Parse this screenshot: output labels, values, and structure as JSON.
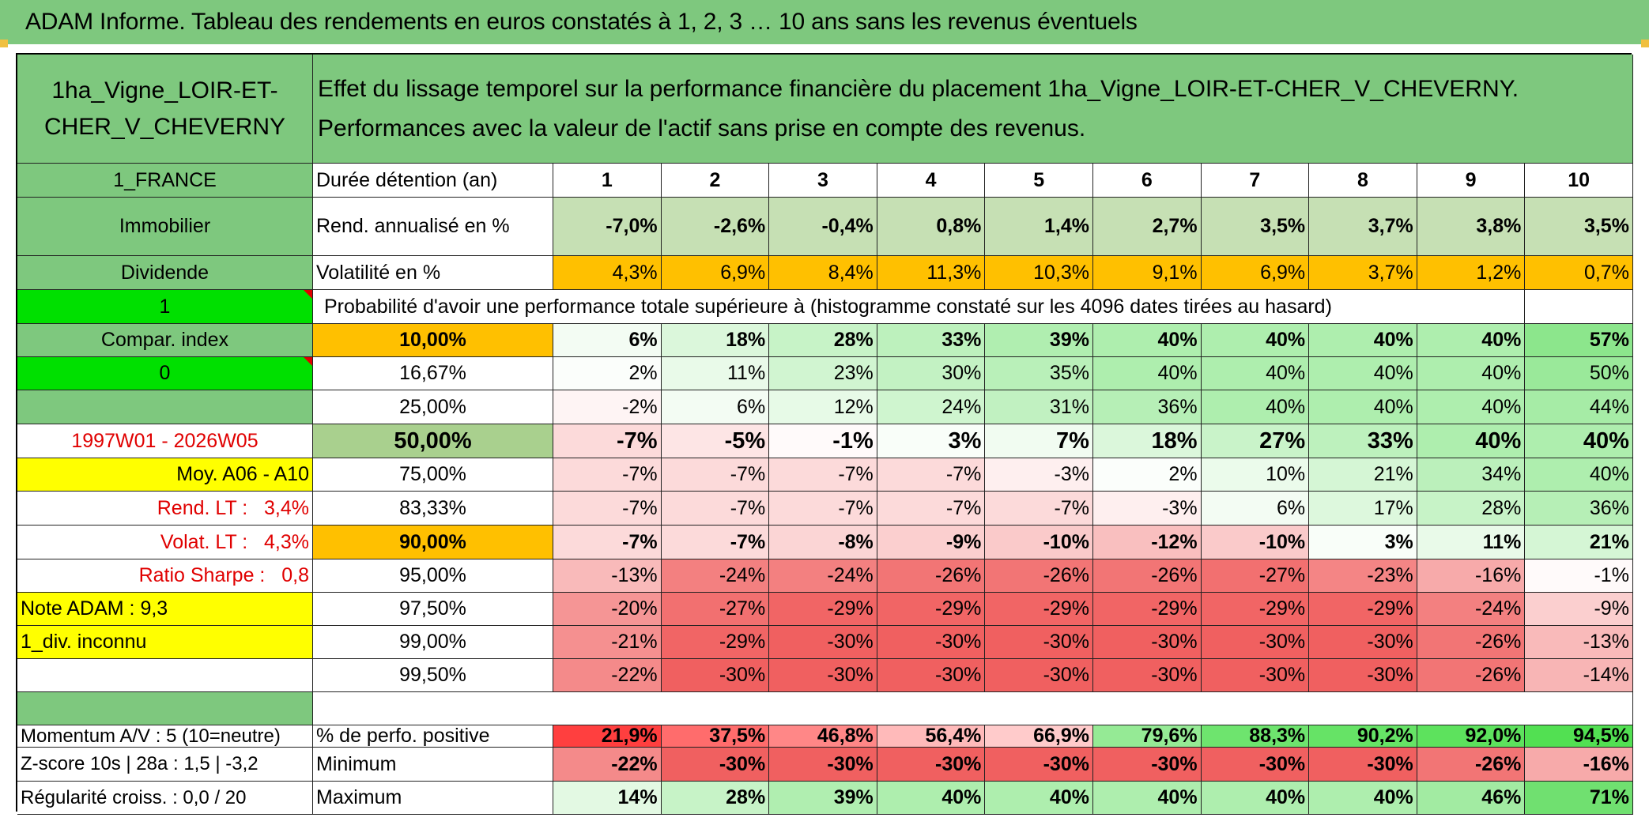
{
  "title": "ADAM Informe. Tableau des rendements en euros constatés à 1, 2, 3 … 10 ans sans les revenus éventuels",
  "asset_name": "1ha_Vigne_LOIR-ET-CHER_V_CHEVERNY",
  "description": "Effet du lissage temporel sur la performance financière du placement 1ha_Vigne_LOIR-ET-CHER_V_CHEVERNY. Performances avec la valeur de l'actif sans prise en compte des revenus.",
  "left": {
    "country": "1_FRANCE",
    "category": "Immobilier",
    "type": "Dividende",
    "flag1": "1",
    "compar_index": "Compar. index",
    "flag0": "0",
    "period": "1997W01 - 2026W05",
    "moy": "Moy. A06 - A10",
    "rend_lt_label": "Rend. LT :",
    "rend_lt_value": "3,4%",
    "volat_lt_label": "Volat. LT :",
    "volat_lt_value": "4,3%",
    "sharpe_label": "Ratio Sharpe :",
    "sharpe_value": "0,8",
    "note": "Note ADAM : 9,3",
    "div": "1_div. inconnu",
    "momentum": "Momentum A/V : 5 (10=neutre)",
    "zscore": "Z-score 10s | 28a : 1,5 | -3,2",
    "regularite": "Régularité croiss. : 0,0 / 20"
  },
  "labels": {
    "duree": "Durée détention (an)",
    "rend": "Rend. annualisé en %",
    "volat": "Volatilité en %",
    "proba": "Probabilité d'avoir une performance totale supérieure à (histogramme constaté sur les 4096 dates tirées au hasard)",
    "perfo_pos": "% de perfo. positive",
    "minimum": "Minimum",
    "maximum": "Maximum"
  },
  "years": [
    "1",
    "2",
    "3",
    "4",
    "5",
    "6",
    "7",
    "8",
    "9",
    "10"
  ],
  "rend": [
    "-7,0%",
    "-2,6%",
    "-0,4%",
    "0,8%",
    "1,4%",
    "2,7%",
    "3,5%",
    "3,7%",
    "3,8%",
    "3,5%"
  ],
  "volat": [
    "4,3%",
    "6,9%",
    "8,4%",
    "11,3%",
    "10,3%",
    "9,1%",
    "6,9%",
    "3,7%",
    "1,2%",
    "0,7%"
  ],
  "prob_rows": [
    {
      "pct": "10,00%",
      "values": [
        "6%",
        "18%",
        "28%",
        "33%",
        "39%",
        "40%",
        "40%",
        "40%",
        "40%",
        "57%"
      ]
    },
    {
      "pct": "16,67%",
      "values": [
        "2%",
        "11%",
        "23%",
        "30%",
        "35%",
        "40%",
        "40%",
        "40%",
        "40%",
        "50%"
      ]
    },
    {
      "pct": "25,00%",
      "values": [
        "-2%",
        "6%",
        "12%",
        "24%",
        "31%",
        "36%",
        "40%",
        "40%",
        "40%",
        "44%"
      ]
    },
    {
      "pct": "50,00%",
      "values": [
        "-7%",
        "-5%",
        "-1%",
        "3%",
        "7%",
        "18%",
        "27%",
        "33%",
        "40%",
        "40%"
      ]
    },
    {
      "pct": "75,00%",
      "values": [
        "-7%",
        "-7%",
        "-7%",
        "-7%",
        "-3%",
        "2%",
        "10%",
        "21%",
        "34%",
        "40%"
      ]
    },
    {
      "pct": "83,33%",
      "values": [
        "-7%",
        "-7%",
        "-7%",
        "-7%",
        "-7%",
        "-3%",
        "6%",
        "17%",
        "28%",
        "36%"
      ]
    },
    {
      "pct": "90,00%",
      "values": [
        "-7%",
        "-7%",
        "-8%",
        "-9%",
        "-10%",
        "-12%",
        "-10%",
        "3%",
        "11%",
        "21%"
      ]
    },
    {
      "pct": "95,00%",
      "values": [
        "-13%",
        "-24%",
        "-24%",
        "-26%",
        "-26%",
        "-26%",
        "-27%",
        "-23%",
        "-16%",
        "-1%"
      ]
    },
    {
      "pct": "97,50%",
      "values": [
        "-20%",
        "-27%",
        "-29%",
        "-29%",
        "-29%",
        "-29%",
        "-29%",
        "-29%",
        "-24%",
        "-9%"
      ]
    },
    {
      "pct": "99,00%",
      "values": [
        "-21%",
        "-29%",
        "-30%",
        "-30%",
        "-30%",
        "-30%",
        "-30%",
        "-30%",
        "-26%",
        "-13%"
      ]
    },
    {
      "pct": "99,50%",
      "values": [
        "-22%",
        "-30%",
        "-30%",
        "-30%",
        "-30%",
        "-30%",
        "-30%",
        "-30%",
        "-26%",
        "-14%"
      ]
    }
  ],
  "perfo_pos": [
    "21,9%",
    "37,5%",
    "46,8%",
    "56,4%",
    "66,9%",
    "79,6%",
    "88,3%",
    "90,2%",
    "92,0%",
    "94,5%"
  ],
  "minimum": [
    "-22%",
    "-30%",
    "-30%",
    "-30%",
    "-30%",
    "-30%",
    "-30%",
    "-30%",
    "-26%",
    "-16%"
  ],
  "maximum": [
    "14%",
    "28%",
    "39%",
    "40%",
    "40%",
    "40%",
    "40%",
    "40%",
    "46%",
    "71%"
  ],
  "colors": {
    "header_green": "#7ec87e",
    "bright_green": "#00e000",
    "yellow": "#ffff00",
    "orange": "#ffc000",
    "red_text": "#e00000"
  }
}
